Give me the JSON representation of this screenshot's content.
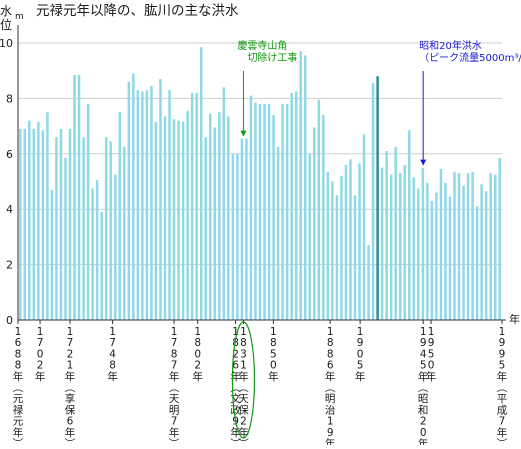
{
  "chart_data": {
    "type": "bar",
    "title": "元禄元年以降の、肱川の主な洪水",
    "ylabel_top": "水",
    "ylabel_unit": "m",
    "ylabel_bottom": "位",
    "xlabel": "年",
    "ylim": [
      0,
      10
    ],
    "yticks": [
      0,
      2,
      4,
      6,
      8,
      10
    ],
    "grid": true,
    "bar_color": "#8fd9e6",
    "highlight_color": "#2f8a95",
    "x_start": 1688,
    "x_end": 1995,
    "series": [
      {
        "values": [
          6.9,
          6.9,
          7.2,
          6.9,
          7.15,
          6.85,
          7.5,
          4.7,
          6.6,
          6.9,
          5.85,
          6.9,
          8.85,
          8.85,
          6.6,
          7.8,
          4.75,
          5.05,
          3.9,
          6.6,
          6.45,
          5.25,
          7.5,
          6.25,
          8.6,
          8.9,
          8.3,
          8.25,
          8.3,
          8.45,
          7.15,
          8.7,
          7.35,
          8.3,
          7.25,
          7.2,
          7.15,
          7.55,
          8.2,
          8.2,
          9.85,
          6.6,
          7.45,
          6.95,
          7.5,
          8.4,
          7.35,
          6.0,
          6.0,
          6.55,
          6.55,
          8.1,
          7.85,
          7.8,
          7.8,
          7.8,
          7.4,
          6.25,
          7.8,
          7.8,
          8.2,
          8.25,
          9.7,
          9.55,
          6.0,
          6.95,
          7.95,
          7.4,
          5.35,
          5.0,
          4.5,
          5.2,
          5.6,
          5.8,
          4.5,
          5.65,
          6.7,
          2.7,
          8.55,
          8.8,
          5.5,
          6.1,
          5.25,
          6.25,
          5.3,
          5.6,
          6.85,
          5.15,
          4.75,
          5.5,
          4.95,
          4.3,
          4.6,
          5.45,
          4.95,
          4.45,
          5.35,
          5.3,
          4.85,
          5.3,
          5.35,
          4.1,
          4.9,
          4.65,
          5.3,
          5.25,
          5.85
        ]
      }
    ],
    "highlight_index": 79,
    "year_labels": [
      {
        "year": 1688,
        "era": "元禄元年"
      },
      {
        "year": 1702,
        "era": ""
      },
      {
        "year": 1721,
        "era": "享保6年"
      },
      {
        "year": 1748,
        "era": ""
      },
      {
        "year": 1787,
        "era": "天明7年"
      },
      {
        "year": 1802,
        "era": ""
      },
      {
        "year": 1826,
        "era": "文政9年"
      },
      {
        "year": 1831,
        "era": "天保2年"
      },
      {
        "year": 1850,
        "era": ""
      },
      {
        "year": 1886,
        "era": "明治19年"
      },
      {
        "year": 1905,
        "era": ""
      },
      {
        "year": 1945,
        "era": "昭和20年"
      },
      {
        "year": 1950,
        "era": ""
      },
      {
        "year": 1995,
        "era": "平成7年"
      }
    ],
    "annotations": [
      {
        "lines": [
          "慶雲寺山角",
          "切除け工事"
        ],
        "year": 1831,
        "color": "#119911"
      },
      {
        "lines": [
          "昭和20年洪水",
          "（ピーク流量5000m³/s）"
        ],
        "year": 1945,
        "color": "#1a1ad6"
      }
    ],
    "circled_year": 1831
  }
}
